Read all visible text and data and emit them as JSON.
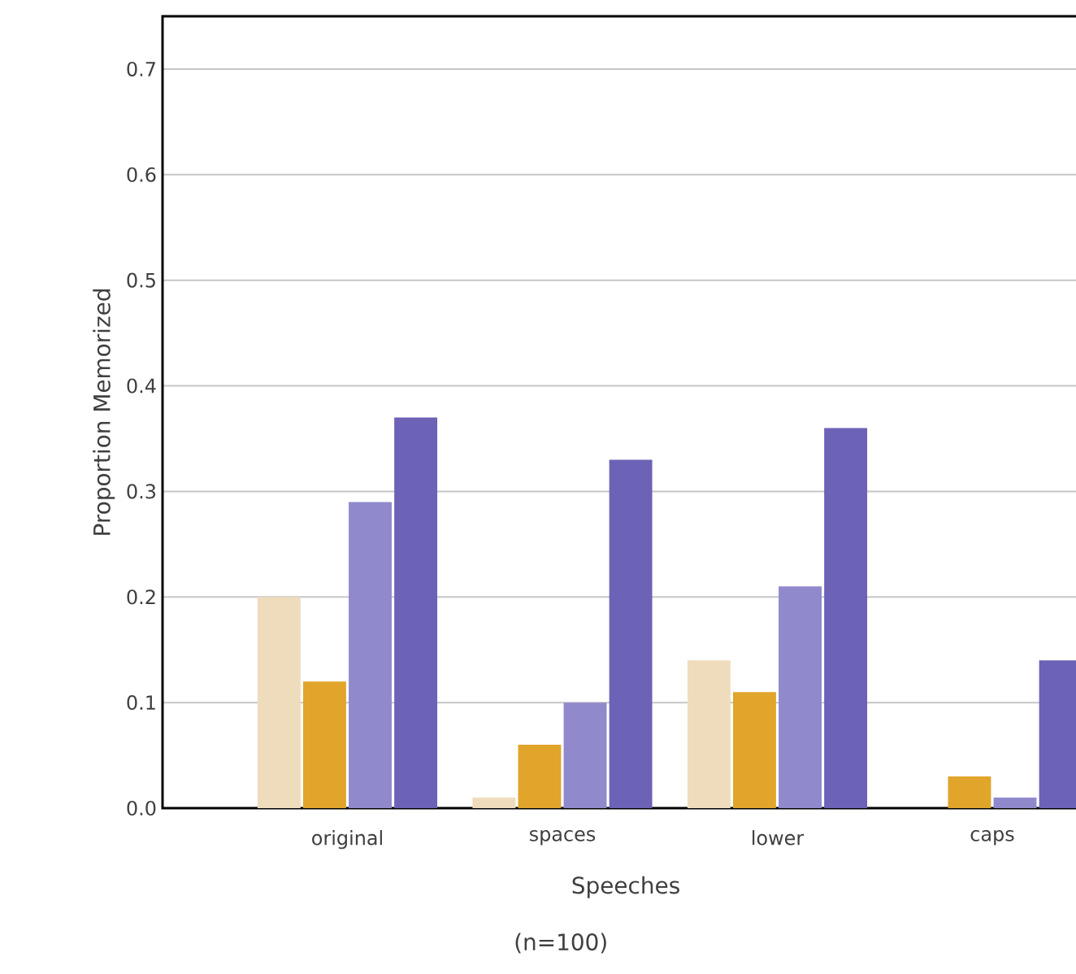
{
  "chart_data": {
    "type": "bar",
    "xlabel": "Speeches",
    "ylabel": "Proportion Memorized",
    "annotations": [
      "(n=100)"
    ],
    "categories": [
      "original",
      "spaces",
      "lower",
      "caps"
    ],
    "series": [
      {
        "color": "#eedcbc",
        "values": [
          0.2,
          0.01,
          0.14,
          null
        ]
      },
      {
        "color": "#e0a52a",
        "values": [
          0.12,
          0.06,
          0.11,
          0.03
        ]
      },
      {
        "color": "#9089cc",
        "values": [
          0.29,
          0.1,
          0.21,
          0.01
        ]
      },
      {
        "color": "#6c62b6",
        "values": [
          0.37,
          0.33,
          0.36,
          0.14
        ]
      }
    ],
    "ylim": [
      0,
      0.75
    ],
    "yticks": [
      {
        "value": 0,
        "label": "0.0"
      },
      {
        "value": 0.1,
        "label": "0.1"
      },
      {
        "value": 0.2,
        "label": "0.2"
      },
      {
        "value": 0.3,
        "label": "0.3"
      },
      {
        "value": 0.4,
        "label": "0.4"
      },
      {
        "value": 0.5,
        "label": "0.5"
      },
      {
        "value": 0.6,
        "label": "0.6"
      },
      {
        "value": 0.7,
        "label": "0.7"
      }
    ],
    "grid": "y"
  }
}
